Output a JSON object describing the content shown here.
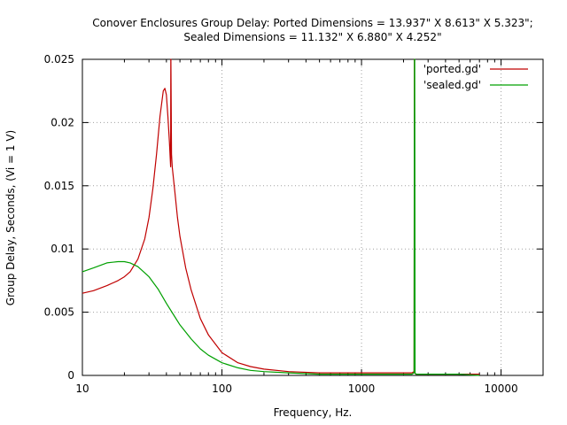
{
  "chart_data": {
    "type": "line",
    "title_line1": "Conover Enclosures Group Delay: Ported Dimensions = 13.937\" X 8.613\" X 5.323\";",
    "title_line2": "Sealed Dimensions = 11.132\" X 6.880\" X 4.252\"",
    "xlabel": "Frequency, Hz.",
    "ylabel": "Group Delay, Seconds, (Vi = 1 V)",
    "x_scale": "log",
    "xlim": [
      10,
      20000
    ],
    "ylim": [
      0,
      0.025
    ],
    "x_ticks": [
      10,
      100,
      1000,
      10000
    ],
    "x_tick_labels": [
      "10",
      "100",
      "1000",
      "10000"
    ],
    "y_ticks": [
      0,
      0.005,
      0.01,
      0.015,
      0.02,
      0.025
    ],
    "y_tick_labels": [
      "0",
      "0.005",
      "0.01",
      "0.015",
      "0.02",
      "0.025"
    ],
    "grid": true,
    "legend_position": "top-right",
    "series": [
      {
        "name": "'ported.gd'",
        "color": "#c00000",
        "x": [
          10,
          12,
          15,
          18,
          20,
          22,
          25,
          28,
          30,
          32,
          34,
          36,
          38,
          39,
          40,
          41,
          42,
          42.9,
          43,
          43.1,
          43.5,
          44,
          46,
          48,
          50,
          55,
          60,
          70,
          80,
          100,
          130,
          160,
          200,
          300,
          500,
          700,
          1000,
          1500,
          2000,
          2300,
          2380,
          2390,
          2400,
          2410,
          2450,
          3000,
          5000,
          7000
        ],
        "y": [
          0.0065,
          0.0067,
          0.0071,
          0.0075,
          0.0078,
          0.0082,
          0.0092,
          0.0108,
          0.0125,
          0.0148,
          0.0175,
          0.0205,
          0.0225,
          0.0227,
          0.0222,
          0.0205,
          0.0185,
          0.0165,
          0.025,
          0.025,
          0.0175,
          0.0165,
          0.0145,
          0.0125,
          0.011,
          0.0085,
          0.0068,
          0.0045,
          0.0032,
          0.0018,
          0.001,
          0.0007,
          0.0005,
          0.0003,
          0.0002,
          0.0002,
          0.0002,
          0.0002,
          0.0002,
          0.0002,
          0.0003,
          0.025,
          0.025,
          0.0002,
          0.0001,
          0.0001,
          0.0001,
          0.0001
        ]
      },
      {
        "name": "'sealed.gd'",
        "color": "#00a000",
        "x": [
          10,
          12,
          15,
          18,
          20,
          22,
          25,
          30,
          35,
          40,
          45,
          50,
          60,
          70,
          80,
          100,
          130,
          160,
          200,
          300,
          500,
          700,
          1000,
          1500,
          2000,
          2300,
          2380,
          2395,
          2405,
          2420,
          2450,
          3000,
          5000,
          7000
        ],
        "y": [
          0.0082,
          0.0085,
          0.0089,
          0.009,
          0.009,
          0.0089,
          0.0086,
          0.0078,
          0.0068,
          0.0057,
          0.0048,
          0.004,
          0.0029,
          0.0021,
          0.0016,
          0.001,
          0.0006,
          0.0004,
          0.0003,
          0.0002,
          0.0001,
          0.0001,
          0.0001,
          0.0001,
          0.0001,
          0.0001,
          0.0002,
          0.025,
          0.025,
          0.0002,
          0.0001,
          0.0001,
          0.0001,
          0.0
        ]
      }
    ]
  }
}
